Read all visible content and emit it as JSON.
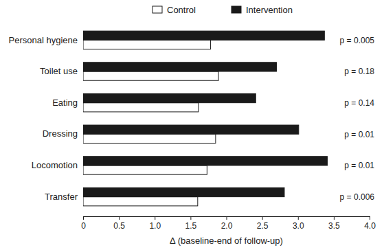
{
  "chart_data": {
    "type": "bar",
    "orientation": "horizontal",
    "categories": [
      "Personal hygiene",
      "Toilet use",
      "Eating",
      "Dressing",
      "Locomotion",
      "Transfer"
    ],
    "series": [
      {
        "name": "Control",
        "color": "#ffffff",
        "values": [
          1.78,
          1.89,
          1.61,
          1.85,
          1.73,
          1.6
        ]
      },
      {
        "name": "Intervention",
        "color": "#1a1a1a",
        "values": [
          3.37,
          2.7,
          2.41,
          3.01,
          3.41,
          2.81
        ]
      }
    ],
    "annotations": [
      "p = 0.005",
      "p = 0.18",
      "p = 0.14",
      "p = 0.01",
      "p = 0.01",
      "p = 0.006"
    ],
    "x_label": "Δ (baseline-end of follow-up)",
    "xlim": [
      0,
      4
    ],
    "xticks": [
      0,
      0.5,
      {
        "value": 1,
        "label": "1.0"
      },
      1.5,
      {
        "value": 2,
        "label": "2.0"
      },
      2.5,
      {
        "value": 3,
        "label": "3.0"
      },
      3.5,
      {
        "value": 4,
        "label": "4.0"
      }
    ],
    "grid": false,
    "legend": "top"
  }
}
